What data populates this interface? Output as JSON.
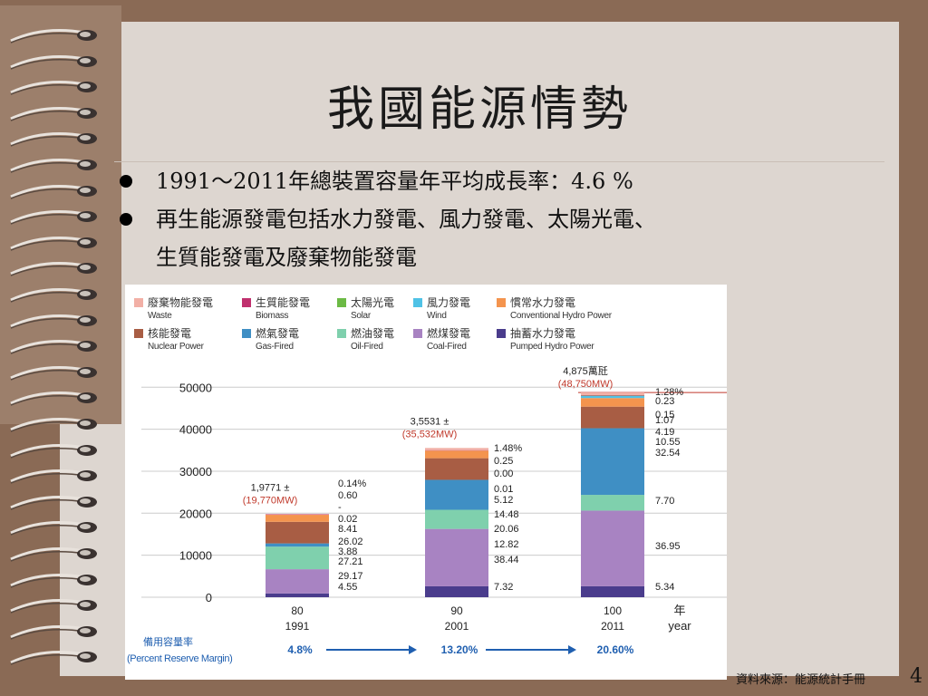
{
  "slide": {
    "title": "我國能源情勢",
    "bullets": [
      "1991～2011年總裝置容量年平均成長率：4.6 %",
      "再生能源發電包括水力發電、風力發電、太陽光電、",
      "生質能發電及廢棄物能發電"
    ],
    "source_note": "資料來源：能源統計手冊",
    "page_number": "4"
  },
  "chart_data": {
    "type": "bar",
    "stacked": true,
    "legend": [
      {
        "zh": "廢棄物能發電",
        "en": "Waste",
        "color": "#f2b0a6"
      },
      {
        "zh": "生質能發電",
        "en": "Biomass",
        "color": "#c0306e"
      },
      {
        "zh": "太陽光電",
        "en": "Solar",
        "color": "#6cba45"
      },
      {
        "zh": "風力發電",
        "en": "Wind",
        "color": "#4fc2e6"
      },
      {
        "zh": "慣常水力發電",
        "en": "Conventional Hydro Power",
        "color": "#f4944e"
      },
      {
        "zh": "核能發電",
        "en": "Nuclear Power",
        "color": "#a85d44"
      },
      {
        "zh": "燃氣發電",
        "en": "Gas-Fired",
        "color": "#3f8fc4"
      },
      {
        "zh": "燃油發電",
        "en": "Oil-Fired",
        "color": "#7fd0ad"
      },
      {
        "zh": "燃煤發電",
        "en": "Coal-Fired",
        "color": "#a883c2"
      },
      {
        "zh": "抽蓄水力發電",
        "en": "Pumped Hydro Power",
        "color": "#4a3c8c"
      }
    ],
    "y_ticks": [
      "50000",
      "40000",
      "30000",
      "20000",
      "10000",
      "0"
    ],
    "ylim": [
      0,
      52000
    ],
    "x_unit": {
      "zh": "年",
      "en": "year"
    },
    "bars": [
      {
        "roc": "80",
        "year": "1991",
        "total": 19770,
        "total_label": "1,9771 ±",
        "total_mw": "(19,770MW)",
        "segments": [
          {
            "name": "Pumped Hydro Power",
            "value": 4.55
          },
          {
            "name": "Coal-Fired",
            "value": 29.17
          },
          {
            "name": "Oil-Fired",
            "value": 27.21
          },
          {
            "name": "Gas-Fired",
            "value": 3.88
          },
          {
            "name": "Nuclear Power",
            "value": 26.02
          },
          {
            "name": "Conventional Hydro Power",
            "value": 8.41
          },
          {
            "name": "Wind",
            "value": 0.02
          },
          {
            "name": "Solar",
            "value": 0
          },
          {
            "name": "Biomass",
            "value": 0.6
          },
          {
            "name": "Waste",
            "value": 0.14
          }
        ],
        "labels": [
          "0.14%",
          "0.60",
          "-",
          "0.02",
          "8.41",
          "26.02",
          "3.88",
          "27.21",
          "29.17",
          "4.55"
        ]
      },
      {
        "roc": "90",
        "year": "2001",
        "total": 35532,
        "total_label": "3,5531 ±",
        "total_mw": "(35,532MW)",
        "segments": [
          {
            "name": "Pumped Hydro Power",
            "value": 7.32
          },
          {
            "name": "Coal-Fired",
            "value": 38.44
          },
          {
            "name": "Oil-Fired",
            "value": 12.82
          },
          {
            "name": "Gas-Fired",
            "value": 20.06
          },
          {
            "name": "Nuclear Power",
            "value": 14.48
          },
          {
            "name": "Conventional Hydro Power",
            "value": 5.12
          },
          {
            "name": "Wind",
            "value": 0.01
          },
          {
            "name": "Solar",
            "value": 0.0
          },
          {
            "name": "Biomass",
            "value": 0.25
          },
          {
            "name": "Waste",
            "value": 1.48
          }
        ],
        "labels": [
          "1.48%",
          "0.25",
          "0.00",
          "0.01",
          "5.12",
          "14.48",
          "20.06",
          "12.82",
          "38.44",
          "7.32"
        ]
      },
      {
        "roc": "100",
        "year": "2011",
        "total": 48750,
        "total_label": "4,875萬瓩",
        "total_mw": "(48,750MW)",
        "segments": [
          {
            "name": "Pumped Hydro Power",
            "value": 5.34
          },
          {
            "name": "Coal-Fired",
            "value": 36.95
          },
          {
            "name": "Oil-Fired",
            "value": 7.7
          },
          {
            "name": "Gas-Fired",
            "value": 32.54
          },
          {
            "name": "Nuclear Power",
            "value": 10.55
          },
          {
            "name": "Conventional Hydro Power",
            "value": 4.19
          },
          {
            "name": "Wind",
            "value": 1.07
          },
          {
            "name": "Solar",
            "value": 0.15
          },
          {
            "name": "Biomass",
            "value": 0.23
          },
          {
            "name": "Waste",
            "value": 1.28
          }
        ],
        "labels": [
          "1.28%",
          "0.23",
          "0.15",
          "1.07",
          "4.19",
          "10.55",
          "32.54",
          "7.70",
          "36.95",
          "5.34"
        ]
      }
    ],
    "reserve_margin": {
      "label_zh": "備用容量率",
      "label_en": "(Percent Reserve Margin)",
      "values": [
        "4.8%",
        "13.20%",
        "20.60%"
      ]
    },
    "colors": {
      "total_mw": "#c0392b",
      "reserve": "#1f5fb0",
      "grid": "#cccccc"
    }
  }
}
